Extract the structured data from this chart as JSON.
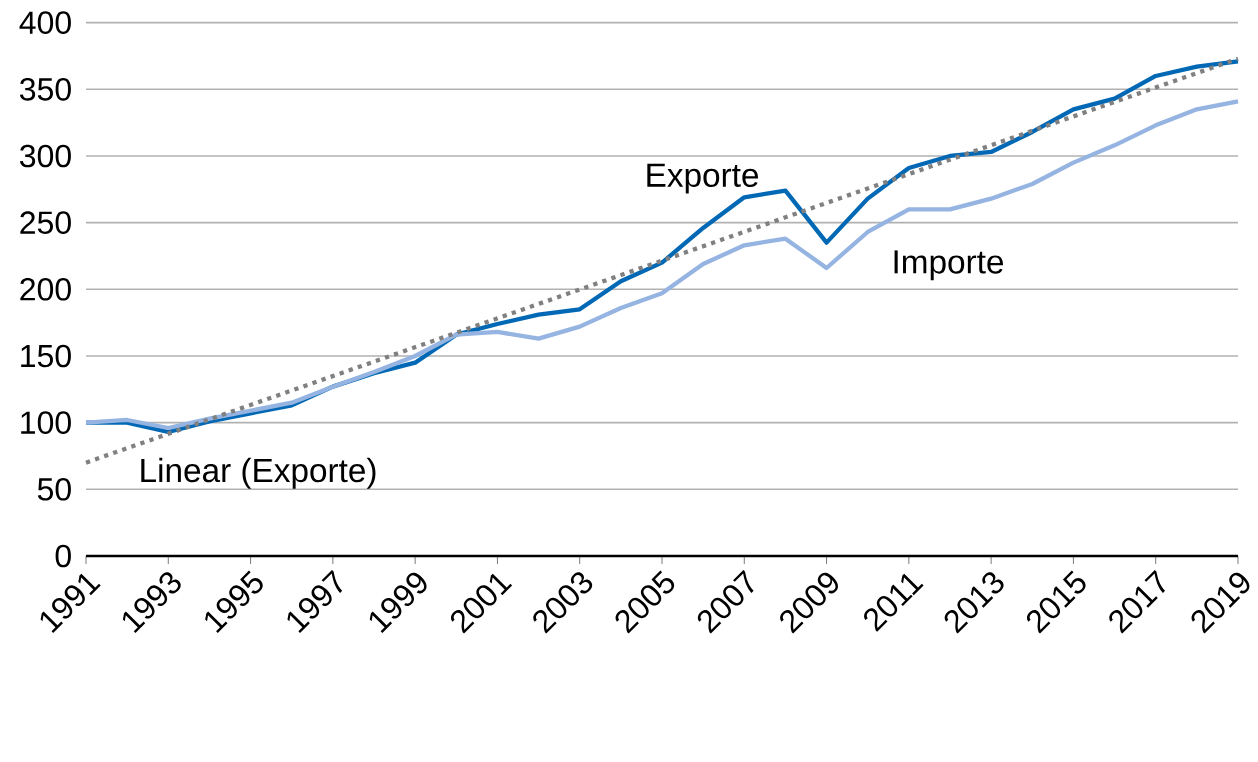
{
  "chart_data": {
    "type": "line",
    "x": [
      1991,
      1992,
      1993,
      1994,
      1995,
      1996,
      1997,
      1998,
      1999,
      2000,
      2001,
      2002,
      2003,
      2004,
      2005,
      2006,
      2007,
      2008,
      2009,
      2010,
      2011,
      2012,
      2013,
      2014,
      2015,
      2016,
      2017,
      2018,
      2019
    ],
    "series": [
      {
        "name": "Exporte",
        "color": "#0068b4",
        "line_style": "solid",
        "values": [
          100,
          100,
          93,
          101,
          107,
          113,
          127,
          137,
          145,
          166,
          174,
          181,
          185,
          206,
          220,
          246,
          269,
          274,
          235,
          268,
          291,
          300,
          303,
          318,
          335,
          343,
          360,
          367,
          371
        ]
      },
      {
        "name": "Importe",
        "color": "#96b4e1",
        "line_style": "solid",
        "values": [
          100,
          102,
          96,
          103,
          109,
          115,
          127,
          138,
          150,
          166,
          168,
          163,
          172,
          186,
          197,
          219,
          233,
          238,
          216,
          243,
          260,
          260,
          268,
          279,
          295,
          308,
          323,
          335,
          341
        ]
      },
      {
        "name": "Linear (Exporte)",
        "color": "#808080",
        "line_style": "dotted",
        "x": [
          1991,
          2019
        ],
        "values": [
          70,
          373
        ]
      }
    ],
    "xlim": [
      1991,
      2019
    ],
    "xticks": [
      1991,
      1993,
      1995,
      1997,
      1999,
      2001,
      2003,
      2005,
      2007,
      2009,
      2011,
      2013,
      2015,
      2017,
      2019
    ],
    "ylim": [
      0,
      400
    ],
    "yticks": [
      0,
      50,
      100,
      150,
      200,
      250,
      300,
      350,
      400
    ],
    "grid": "y",
    "legend": false,
    "marker": "none"
  }
}
